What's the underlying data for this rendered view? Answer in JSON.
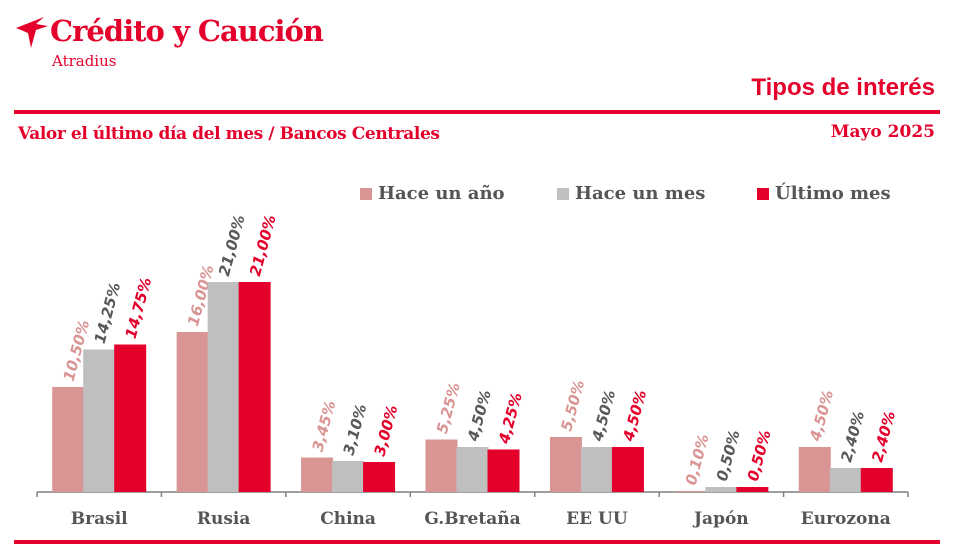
{
  "header": {
    "brand_name": "Crédito y Caución",
    "brand_sub": "Atradius",
    "page_title": "Tipos de interés",
    "subtitle": "Valor el último día del mes / Bancos Centrales",
    "date": "Mayo 2025"
  },
  "colors": {
    "brand": "#e4002b",
    "year_ago": "#d99594",
    "month_ago": "#bfbfbf",
    "last_month": "#e4002b",
    "month_ago_label": "#595959"
  },
  "logo": {
    "icon": "atradius-bird-icon"
  },
  "chart_data": {
    "type": "bar",
    "categories": [
      "Brasil",
      "Rusia",
      "China",
      "G.Bretaña",
      "EE UU",
      "Japón",
      "Eurozona"
    ],
    "series": [
      {
        "name": "Hace un año",
        "values": [
          10.5,
          16.0,
          3.45,
          5.25,
          5.5,
          0.1,
          4.5
        ],
        "labels": [
          "10,50%",
          "16,00%",
          "3,45%",
          "5,25%",
          "5,50%",
          "0,10%",
          "4,50%"
        ]
      },
      {
        "name": "Hace un mes",
        "values": [
          14.25,
          21.0,
          3.1,
          4.5,
          4.5,
          0.5,
          2.4
        ],
        "labels": [
          "14,25%",
          "21,00%",
          "3,10%",
          "4,50%",
          "4,50%",
          "0,50%",
          "2,40%"
        ]
      },
      {
        "name": "Último mes",
        "values": [
          14.75,
          21.0,
          3.0,
          4.25,
          4.5,
          0.5,
          2.4
        ],
        "labels": [
          "14,75%",
          "21,00%",
          "3,00%",
          "4,25%",
          "4,50%",
          "0,50%",
          "2,40%"
        ]
      }
    ],
    "ylim": [
      0,
      21
    ],
    "legend": "top-right",
    "grid": false
  }
}
